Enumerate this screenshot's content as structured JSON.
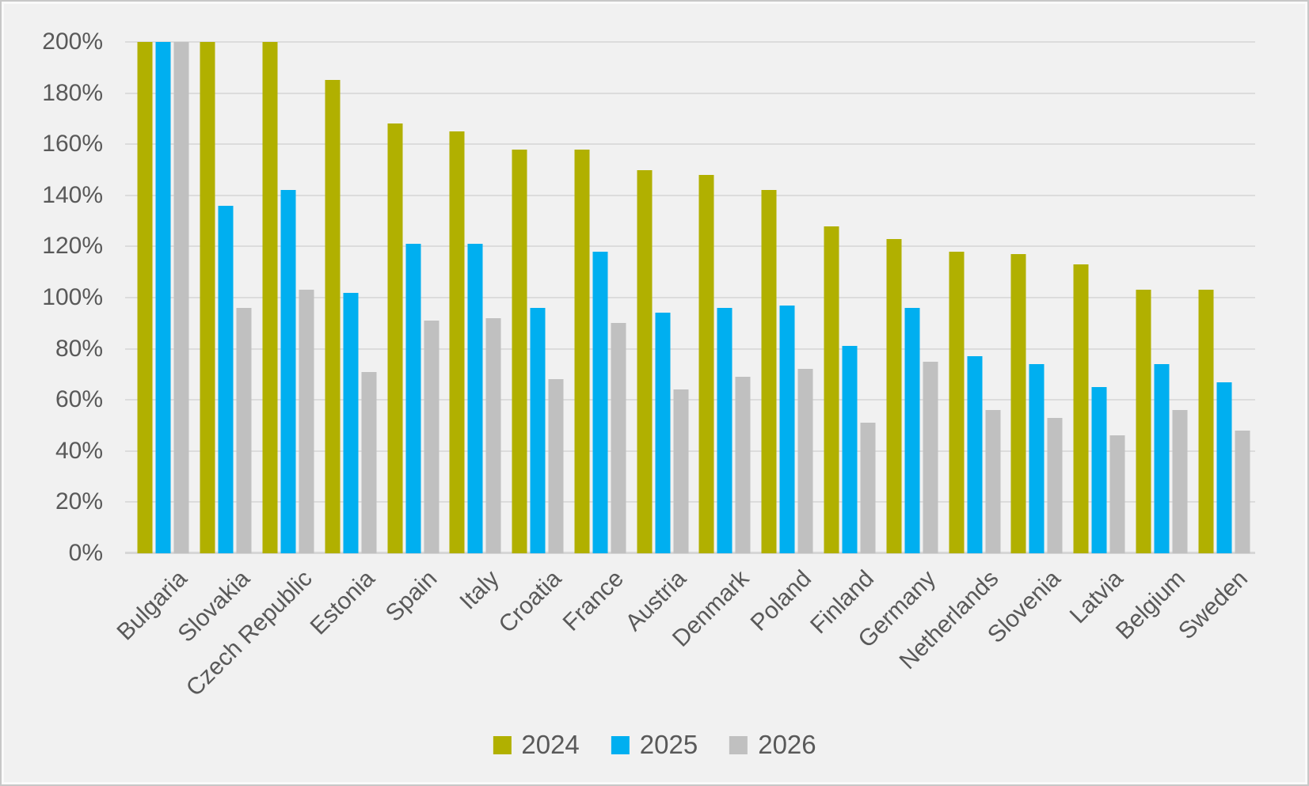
{
  "chart_data": {
    "type": "bar",
    "title": "",
    "xlabel": "",
    "ylabel": "",
    "categories": [
      "Bulgaria",
      "Slovakia",
      "Czech Republic",
      "Estonia",
      "Spain",
      "Italy",
      "Croatia",
      "France",
      "Austria",
      "Denmark",
      "Poland",
      "Finland",
      "Germany",
      "Netherlands",
      "Slovenia",
      "Latvia",
      "Belgium",
      "Sweden"
    ],
    "series": [
      {
        "name": "2024",
        "color": "#b1b000",
        "values": [
          200,
          200,
          200,
          185,
          168,
          165,
          158,
          158,
          150,
          148,
          142,
          128,
          123,
          118,
          117,
          113,
          103,
          103
        ]
      },
      {
        "name": "2025",
        "color": "#00aff0",
        "values": [
          200,
          136,
          142,
          102,
          121,
          121,
          96,
          118,
          94,
          96,
          97,
          81,
          96,
          77,
          74,
          65,
          74,
          67
        ]
      },
      {
        "name": "2026",
        "color": "#c0c0c0",
        "values": [
          200,
          96,
          103,
          71,
          91,
          92,
          68,
          90,
          64,
          69,
          72,
          51,
          75,
          56,
          53,
          46,
          56,
          48
        ]
      }
    ],
    "ylim": [
      0,
      200
    ],
    "ytick_step": 20,
    "ytick_labels": [
      "0%",
      "20%",
      "40%",
      "60%",
      "80%",
      "100%",
      "120%",
      "140%",
      "160%",
      "180%",
      "200%"
    ],
    "bars_clipped_at_axis_max": [
      {
        "category": "Bulgaria",
        "series": [
          "2024",
          "2025",
          "2026"
        ]
      },
      {
        "category": "Slovakia",
        "series": [
          "2024"
        ]
      },
      {
        "category": "Czech Republic",
        "series": [
          "2024"
        ]
      }
    ],
    "grid": true,
    "legend_position": "bottom"
  },
  "layout_colors": {
    "background": "#f1f1f1",
    "gridline": "#dcdcdc",
    "axis_line": "#d6d6d6",
    "text": "#595959",
    "frame_border": "#c8c8c8"
  }
}
